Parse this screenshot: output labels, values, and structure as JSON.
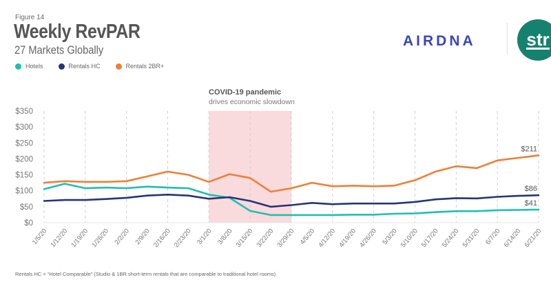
{
  "figure_label": "Figure 14",
  "title": "Weekly RevPAR",
  "subtitle": "27 Markets Globally",
  "logos": {
    "airdna": "AIRDNA",
    "str": "str",
    "airdna_color": "#3a46b8",
    "str_color": "#14826e"
  },
  "annotation": {
    "title": "COVID-19 pandemic",
    "subtitle": "drives economic slowdown",
    "shaded_from": "3/1/20",
    "shaded_to": "3/29/20",
    "shade_color": "#f9dadd"
  },
  "footnote": "Rentals HC = “Hotel Comparable” (Studio & 1BR short-term rentals that are comparable to traditional hotel rooms)",
  "chart_data": {
    "type": "line",
    "title": "Weekly RevPAR",
    "subtitle": "27 Markets Globally",
    "xlabel": "",
    "ylabel": "",
    "ylim": [
      0,
      350
    ],
    "yticks": [
      0,
      50,
      100,
      150,
      200,
      250,
      300,
      350
    ],
    "ytick_labels": [
      "$0",
      "$50",
      "$100",
      "$150",
      "$200",
      "$250",
      "$300",
      "$350"
    ],
    "grid": "vertical dashed every 2nd week",
    "legend_position": "top-left",
    "x": [
      "1/5/20",
      "1/12/20",
      "1/19/20",
      "1/26/20",
      "2/2/20",
      "2/9/20",
      "2/16/20",
      "2/23/20",
      "3/1/20",
      "3/8/20",
      "3/15/20",
      "3/22/20",
      "3/29/20",
      "4/5/20",
      "4/12/20",
      "4/19/20",
      "4/26/20",
      "5/3/20",
      "5/10/20",
      "5/17/20",
      "5/24/20",
      "5/31/20",
      "6/7/20",
      "6/14/20",
      "6/21/20"
    ],
    "series": [
      {
        "name": "Hotels",
        "color": "#1fbfb0",
        "values": [
          105,
          122,
          108,
          110,
          108,
          113,
          110,
          108,
          88,
          78,
          37,
          24,
          24,
          24,
          24,
          25,
          25,
          28,
          29,
          33,
          36,
          36,
          39,
          40,
          41
        ],
        "end_label": "$41"
      },
      {
        "name": "Rentals HC",
        "color": "#23357a",
        "values": [
          68,
          71,
          71,
          74,
          78,
          85,
          88,
          85,
          75,
          80,
          68,
          50,
          55,
          62,
          58,
          60,
          60,
          60,
          65,
          73,
          77,
          76,
          81,
          84,
          86
        ],
        "end_label": "$86"
      },
      {
        "name": "Rentals 2BR+",
        "color": "#f07f35",
        "values": [
          125,
          130,
          128,
          128,
          130,
          145,
          160,
          150,
          128,
          152,
          140,
          97,
          108,
          125,
          114,
          116,
          114,
          116,
          133,
          160,
          177,
          171,
          195,
          203,
          211
        ],
        "end_label": "$211"
      }
    ]
  }
}
